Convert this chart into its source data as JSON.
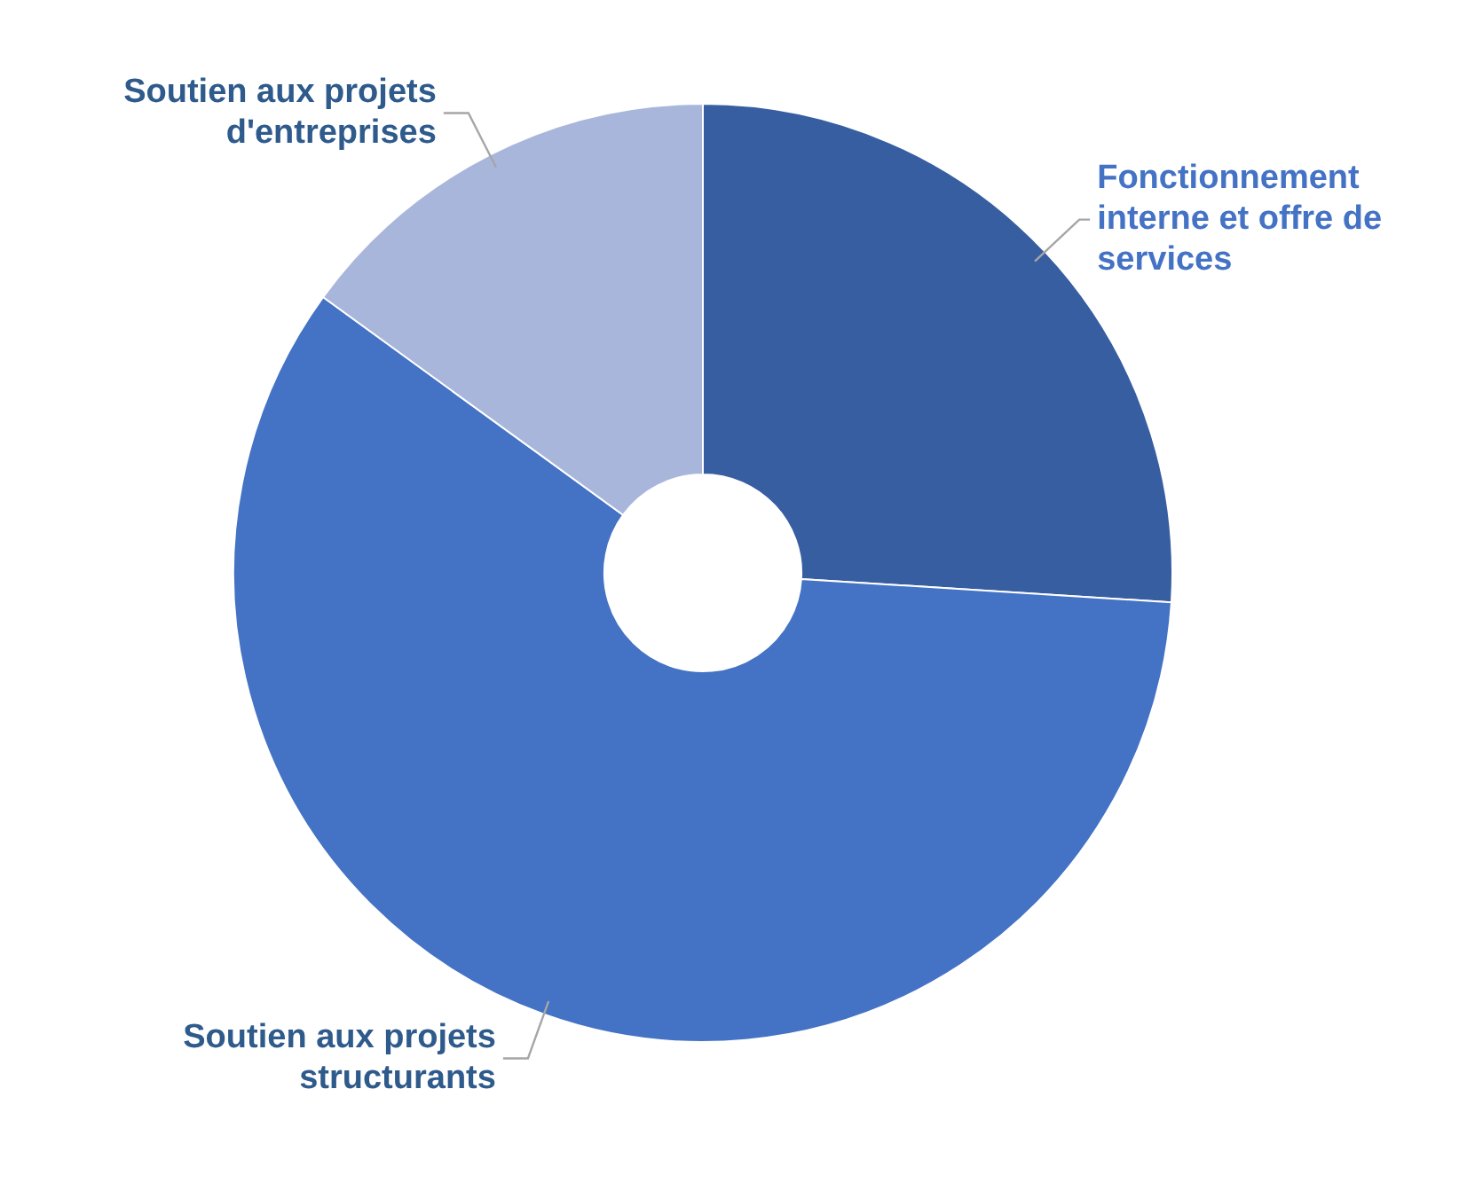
{
  "chart_data": {
    "type": "donut",
    "categories": [
      "Fonctionnement interne et offre de services",
      "Soutien aux projets structurants",
      "Soutien aux projets d'entreprises"
    ],
    "values": [
      26,
      59,
      15
    ],
    "colors": [
      "#375ea1",
      "#4472c4",
      "#a9b6dc"
    ],
    "legend": false
  }
}
